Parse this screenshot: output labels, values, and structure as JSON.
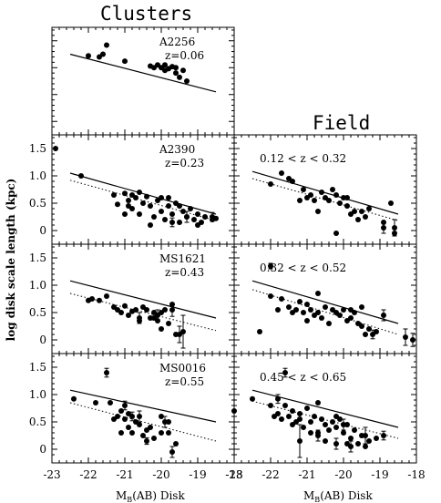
{
  "figure": {
    "col_title_left": "Clusters",
    "col_title_right": "Field",
    "ylabel": "log disk scale length (kpc)",
    "xlabel_left": "M",
    "xlabel_sub": "B",
    "xlabel_rest": "(AB) Disk",
    "xlabel_right": "M",
    "xlabel_right_sub": "B",
    "xlabel_right_rest": "(AB) Disk"
  },
  "chart_data": [
    {
      "type": "scatter",
      "panel": "A2256",
      "label1": "A2256",
      "label2": "z=0.06",
      "xlim": [
        -23,
        -18
      ],
      "ylim": [
        -0.25,
        1.75
      ],
      "show_y_ticks": false,
      "show_x_ticks": false,
      "solid_line": [
        [
          -22.5,
          1.25
        ],
        [
          -18.5,
          0.55
        ]
      ],
      "dotted_line": null,
      "points": [
        [
          -22.0,
          1.22
        ],
        [
          -21.7,
          1.2
        ],
        [
          -21.6,
          1.25
        ],
        [
          -21.5,
          1.42
        ],
        [
          -21.0,
          1.12
        ],
        [
          -20.3,
          1.03
        ],
        [
          -20.2,
          1.0
        ],
        [
          -20.1,
          1.05
        ],
        [
          -20.0,
          1.0
        ],
        [
          -19.9,
          1.05
        ],
        [
          -19.8,
          0.98
        ],
        [
          -19.7,
          1.02
        ],
        [
          -19.6,
          0.9
        ],
        [
          -19.5,
          0.82
        ],
        [
          -19.4,
          0.95
        ],
        [
          -19.3,
          0.75
        ],
        [
          -19.6,
          1.0
        ],
        [
          -19.9,
          0.95
        ]
      ],
      "errorbars": []
    },
    {
      "type": "scatter",
      "panel": "A2390",
      "label1": "A2390",
      "label2": "z=0.23",
      "xlim": [
        -23,
        -18
      ],
      "ylim": [
        -0.25,
        1.75
      ],
      "show_y_ticks": true,
      "show_x_ticks": false,
      "solid_line": [
        [
          -22.5,
          1.05
        ],
        [
          -18.5,
          0.3
        ]
      ],
      "dotted_line": [
        [
          -22.5,
          0.92
        ],
        [
          -18.5,
          0.18
        ]
      ],
      "points": [
        [
          -22.9,
          1.5
        ],
        [
          -22.2,
          1.0
        ],
        [
          -21.3,
          0.65
        ],
        [
          -21.2,
          0.48
        ],
        [
          -21.0,
          0.3
        ],
        [
          -20.9,
          0.55
        ],
        [
          -20.8,
          0.65
        ],
        [
          -20.8,
          0.4
        ],
        [
          -20.7,
          0.6
        ],
        [
          -20.6,
          0.3
        ],
        [
          -20.5,
          0.5
        ],
        [
          -20.4,
          0.62
        ],
        [
          -20.3,
          0.45
        ],
        [
          -20.2,
          0.25
        ],
        [
          -20.1,
          0.55
        ],
        [
          -20.0,
          0.6
        ],
        [
          -20.0,
          0.35
        ],
        [
          -19.9,
          0.2
        ],
        [
          -19.8,
          0.45
        ],
        [
          -19.7,
          0.3
        ],
        [
          -19.6,
          0.5
        ],
        [
          -19.5,
          0.15
        ],
        [
          -19.4,
          0.35
        ],
        [
          -19.3,
          0.25
        ],
        [
          -19.2,
          0.4
        ],
        [
          -19.1,
          0.2
        ],
        [
          -19.0,
          0.3
        ],
        [
          -18.9,
          0.15
        ],
        [
          -18.8,
          0.25
        ],
        [
          -18.6,
          0.2
        ],
        [
          -18.5,
          0.22
        ],
        [
          -19.8,
          0.6
        ],
        [
          -20.6,
          0.7
        ],
        [
          -20.3,
          0.1
        ],
        [
          -19.0,
          0.1
        ],
        [
          -19.5,
          0.45
        ],
        [
          -20.9,
          0.45
        ],
        [
          -21.0,
          0.68
        ]
      ],
      "errorbars": [
        [
          -19.3,
          0.25,
          0.1
        ],
        [
          -18.6,
          0.25,
          0.08
        ],
        [
          -19.7,
          0.15,
          0.08
        ]
      ]
    },
    {
      "type": "scatter",
      "panel": "field1",
      "label1": "0.12 < z < 0.32",
      "label2": "",
      "xlim": [
        -23,
        -18
      ],
      "ylim": [
        -0.25,
        1.75
      ],
      "show_y_ticks": false,
      "show_x_ticks": false,
      "solid_line": [
        [
          -22.5,
          1.08
        ],
        [
          -18.5,
          0.3
        ]
      ],
      "dotted_line": [
        [
          -22.5,
          0.95
        ],
        [
          -18.5,
          0.18
        ]
      ],
      "points": [
        [
          -22.0,
          0.85
        ],
        [
          -21.7,
          1.05
        ],
        [
          -21.5,
          0.95
        ],
        [
          -21.4,
          0.9
        ],
        [
          -21.2,
          0.55
        ],
        [
          -21.1,
          0.75
        ],
        [
          -21.0,
          0.6
        ],
        [
          -20.9,
          0.65
        ],
        [
          -20.8,
          0.55
        ],
        [
          -20.7,
          0.35
        ],
        [
          -20.6,
          0.7
        ],
        [
          -20.5,
          0.6
        ],
        [
          -20.4,
          0.55
        ],
        [
          -20.3,
          0.75
        ],
        [
          -20.2,
          0.65
        ],
        [
          -20.1,
          0.5
        ],
        [
          -20.0,
          0.6
        ],
        [
          -19.9,
          0.45
        ],
        [
          -19.8,
          0.3
        ],
        [
          -19.7,
          0.35
        ],
        [
          -19.6,
          0.2
        ],
        [
          -19.5,
          0.35
        ],
        [
          -19.4,
          0.25
        ],
        [
          -19.3,
          0.4
        ],
        [
          -18.9,
          0.15
        ],
        [
          -18.7,
          0.5
        ],
        [
          -18.6,
          -0.05
        ],
        [
          -20.2,
          -0.05
        ],
        [
          -19.9,
          0.6
        ]
      ],
      "errorbars": [
        [
          -18.9,
          0.05,
          0.1
        ],
        [
          -18.6,
          0.05,
          0.15
        ]
      ]
    },
    {
      "type": "scatter",
      "panel": "MS1621",
      "label1": "MS1621",
      "label2": "z=0.43",
      "xlim": [
        -23,
        -18
      ],
      "ylim": [
        -0.25,
        1.75
      ],
      "show_y_ticks": true,
      "show_x_ticks": false,
      "solid_line": [
        [
          -22.5,
          1.08
        ],
        [
          -18.5,
          0.4
        ]
      ],
      "dotted_line": [
        [
          -22.5,
          0.85
        ],
        [
          -18.5,
          0.17
        ]
      ],
      "points": [
        [
          -22.0,
          0.72
        ],
        [
          -21.9,
          0.75
        ],
        [
          -21.7,
          0.72
        ],
        [
          -21.5,
          0.8
        ],
        [
          -21.3,
          0.6
        ],
        [
          -21.2,
          0.55
        ],
        [
          -21.1,
          0.5
        ],
        [
          -21.0,
          0.62
        ],
        [
          -20.9,
          0.45
        ],
        [
          -20.8,
          0.52
        ],
        [
          -20.7,
          0.55
        ],
        [
          -20.6,
          0.35
        ],
        [
          -20.5,
          0.6
        ],
        [
          -20.4,
          0.55
        ],
        [
          -20.3,
          0.4
        ],
        [
          -20.2,
          0.5
        ],
        [
          -20.1,
          0.35
        ],
        [
          -20.0,
          0.5
        ],
        [
          -19.9,
          0.55
        ],
        [
          -19.8,
          0.3
        ],
        [
          -19.7,
          0.65
        ],
        [
          -19.6,
          0.1
        ],
        [
          -20.0,
          0.2
        ],
        [
          -20.2,
          0.4
        ]
      ],
      "errorbars": [
        [
          -19.5,
          0.1,
          0.15
        ],
        [
          -19.4,
          0.15,
          0.3
        ],
        [
          -20.1,
          0.45,
          0.1
        ],
        [
          -19.7,
          0.55,
          0.12
        ],
        [
          -20.6,
          0.4,
          0.1
        ]
      ]
    },
    {
      "type": "scatter",
      "panel": "field2",
      "label1": "0.32 < z < 0.52",
      "label2": "",
      "xlim": [
        -23,
        -18
      ],
      "ylim": [
        -0.25,
        1.75
      ],
      "show_y_ticks": false,
      "show_x_ticks": false,
      "solid_line": [
        [
          -22.5,
          1.08
        ],
        [
          -18.5,
          0.3
        ]
      ],
      "dotted_line": [
        [
          -22.5,
          0.92
        ],
        [
          -18.5,
          0.1
        ]
      ],
      "points": [
        [
          -22.3,
          0.15
        ],
        [
          -22.0,
          0.8
        ],
        [
          -21.8,
          0.55
        ],
        [
          -21.7,
          0.75
        ],
        [
          -21.5,
          0.6
        ],
        [
          -21.4,
          0.5
        ],
        [
          -21.3,
          0.55
        ],
        [
          -21.2,
          0.7
        ],
        [
          -21.1,
          0.5
        ],
        [
          -21.0,
          0.35
        ],
        [
          -20.9,
          0.55
        ],
        [
          -20.8,
          0.45
        ],
        [
          -20.7,
          0.5
        ],
        [
          -20.6,
          0.4
        ],
        [
          -20.5,
          0.6
        ],
        [
          -20.4,
          0.3
        ],
        [
          -20.3,
          0.55
        ],
        [
          -20.2,
          0.5
        ],
        [
          -20.1,
          0.45
        ],
        [
          -20.0,
          0.55
        ],
        [
          -19.9,
          0.35
        ],
        [
          -19.8,
          0.4
        ],
        [
          -19.7,
          0.5
        ],
        [
          -19.6,
          0.3
        ],
        [
          -19.5,
          0.25
        ],
        [
          -19.4,
          0.1
        ],
        [
          -19.3,
          0.2
        ],
        [
          -19.1,
          0.15
        ],
        [
          -20.7,
          0.85
        ],
        [
          -21.0,
          0.65
        ],
        [
          -19.5,
          0.6
        ],
        [
          -19.8,
          0.55
        ]
      ],
      "errorbars": [
        [
          -22.0,
          1.35,
          0.05
        ],
        [
          -18.9,
          0.45,
          0.1
        ],
        [
          -18.3,
          0.05,
          0.15
        ],
        [
          -18.1,
          0.0,
          0.12
        ],
        [
          -19.2,
          0.1,
          0.08
        ]
      ]
    },
    {
      "type": "scatter",
      "panel": "MS0016",
      "label1": "MS0016",
      "label2": "z=0.55",
      "xlim": [
        -23,
        -18
      ],
      "ylim": [
        -0.25,
        1.75
      ],
      "show_y_ticks": true,
      "show_x_ticks": true,
      "solid_line": [
        [
          -22.5,
          1.08
        ],
        [
          -18.5,
          0.5
        ]
      ],
      "dotted_line": [
        [
          -22.5,
          0.85
        ],
        [
          -18.5,
          0.15
        ]
      ],
      "points": [
        [
          -22.4,
          0.92
        ],
        [
          -21.8,
          0.85
        ],
        [
          -21.4,
          0.85
        ],
        [
          -21.3,
          0.55
        ],
        [
          -21.2,
          0.6
        ],
        [
          -21.1,
          0.7
        ],
        [
          -21.0,
          0.55
        ],
        [
          -20.9,
          0.4
        ],
        [
          -20.8,
          0.3
        ],
        [
          -20.7,
          0.5
        ],
        [
          -20.6,
          0.45
        ],
        [
          -20.5,
          0.25
        ],
        [
          -20.4,
          0.35
        ],
        [
          -20.3,
          0.4
        ],
        [
          -20.2,
          0.2
        ],
        [
          -20.0,
          0.6
        ],
        [
          -20.0,
          0.3
        ],
        [
          -19.8,
          0.5
        ],
        [
          -19.6,
          0.1
        ],
        [
          -19.8,
          0.3
        ],
        [
          -21.1,
          0.3
        ],
        [
          -20.9,
          0.65
        ]
      ],
      "errorbars": [
        [
          -21.5,
          1.4,
          0.08
        ],
        [
          -21.0,
          0.8,
          0.08
        ],
        [
          -20.8,
          0.6,
          0.08
        ],
        [
          -20.4,
          0.15,
          0.06
        ],
        [
          -19.9,
          0.5,
          0.1
        ],
        [
          -19.7,
          -0.05,
          0.1
        ],
        [
          -20.6,
          0.6,
          0.1
        ]
      ]
    },
    {
      "type": "scatter",
      "panel": "field3",
      "label1": "0.45 < z < 0.65",
      "label2": "",
      "xlim": [
        -23,
        -18
      ],
      "ylim": [
        -0.25,
        1.75
      ],
      "show_y_ticks": false,
      "show_x_ticks": true,
      "solid_line": [
        [
          -22.5,
          1.08
        ],
        [
          -18.5,
          0.4
        ]
      ],
      "dotted_line": [
        [
          -22.5,
          0.88
        ],
        [
          -18.5,
          0.2
        ]
      ],
      "points": [
        [
          -23.0,
          0.7
        ],
        [
          -22.5,
          0.92
        ],
        [
          -22.0,
          0.8
        ],
        [
          -21.8,
          0.65
        ],
        [
          -21.7,
          0.55
        ],
        [
          -21.6,
          0.8
        ],
        [
          -21.5,
          0.6
        ],
        [
          -21.4,
          0.7
        ],
        [
          -21.3,
          0.5
        ],
        [
          -21.2,
          0.65
        ],
        [
          -21.1,
          0.4
        ],
        [
          -21.0,
          0.75
        ],
        [
          -20.9,
          0.5
        ],
        [
          -20.8,
          0.6
        ],
        [
          -20.7,
          0.3
        ],
        [
          -20.6,
          0.55
        ],
        [
          -20.5,
          0.45
        ],
        [
          -20.4,
          0.35
        ],
        [
          -20.3,
          0.5
        ],
        [
          -20.2,
          0.4
        ],
        [
          -20.1,
          0.55
        ],
        [
          -20.0,
          0.3
        ],
        [
          -19.9,
          0.45
        ],
        [
          -19.8,
          0.2
        ],
        [
          -19.7,
          0.35
        ],
        [
          -19.6,
          0.1
        ],
        [
          -19.5,
          0.25
        ],
        [
          -19.4,
          0.05
        ],
        [
          -19.3,
          0.15
        ],
        [
          -19.1,
          0.2
        ],
        [
          -21.9,
          0.6
        ],
        [
          -21.4,
          0.45
        ],
        [
          -20.7,
          0.85
        ],
        [
          -20.5,
          0.15
        ],
        [
          -20.2,
          0.6
        ],
        [
          -19.9,
          0.1
        ],
        [
          -21.2,
          0.55
        ],
        [
          -20.9,
          0.3
        ]
      ],
      "errorbars": [
        [
          -21.6,
          1.4,
          0.08
        ],
        [
          -21.8,
          0.92,
          0.08
        ],
        [
          -20.7,
          0.25,
          0.1
        ],
        [
          -21.2,
          0.15,
          0.3
        ],
        [
          -20.2,
          0.1,
          0.1
        ],
        [
          -19.8,
          0.05,
          0.1
        ],
        [
          -19.4,
          0.25,
          0.15
        ],
        [
          -18.9,
          0.25,
          0.08
        ],
        [
          -20.0,
          0.45,
          0.1
        ]
      ]
    }
  ],
  "axis": {
    "x_ticks": [
      -23,
      -22,
      -21,
      -20,
      -19,
      -18
    ],
    "x_tick_labels": [
      "-23",
      "-22",
      "-21",
      "-20",
      "-19",
      "-18"
    ],
    "y_ticks": [
      0,
      0.5,
      1.0,
      1.5
    ],
    "y_tick_labels": [
      "0",
      "0.5",
      "1.0",
      "1.5"
    ]
  }
}
